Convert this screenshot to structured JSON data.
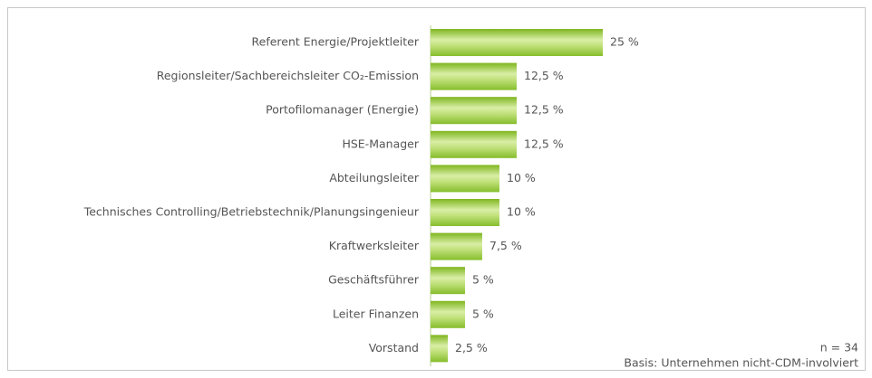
{
  "chart_data": {
    "type": "bar",
    "orientation": "horizontal",
    "categories": [
      "Referent Energie/Projektleiter",
      "Regionsleiter/Sachbereichsleiter CO₂-Emission",
      "Portofilomanager (Energie)",
      "HSE-Manager",
      "Abteilungsleiter",
      "Technisches Controlling/Betriebstechnik/Planungsingenieur",
      "Kraftwerksleiter",
      "Geschäftsführer",
      "Leiter Finanzen",
      "Vorstand"
    ],
    "values": [
      25,
      12.5,
      12.5,
      12.5,
      10,
      10,
      7.5,
      5,
      5,
      2.5
    ],
    "value_labels": [
      "25 %",
      "12,5 %",
      "12,5 %",
      "12,5 %",
      "10 %",
      "10 %",
      "7,5 %",
      "5 %",
      "5 %",
      "2,5 %"
    ],
    "color": "#8cc43a",
    "xlim": [
      0,
      25
    ],
    "annotations": [
      "n = 34",
      "Basis: Unternehmen nicht-CDM-involviert"
    ]
  }
}
